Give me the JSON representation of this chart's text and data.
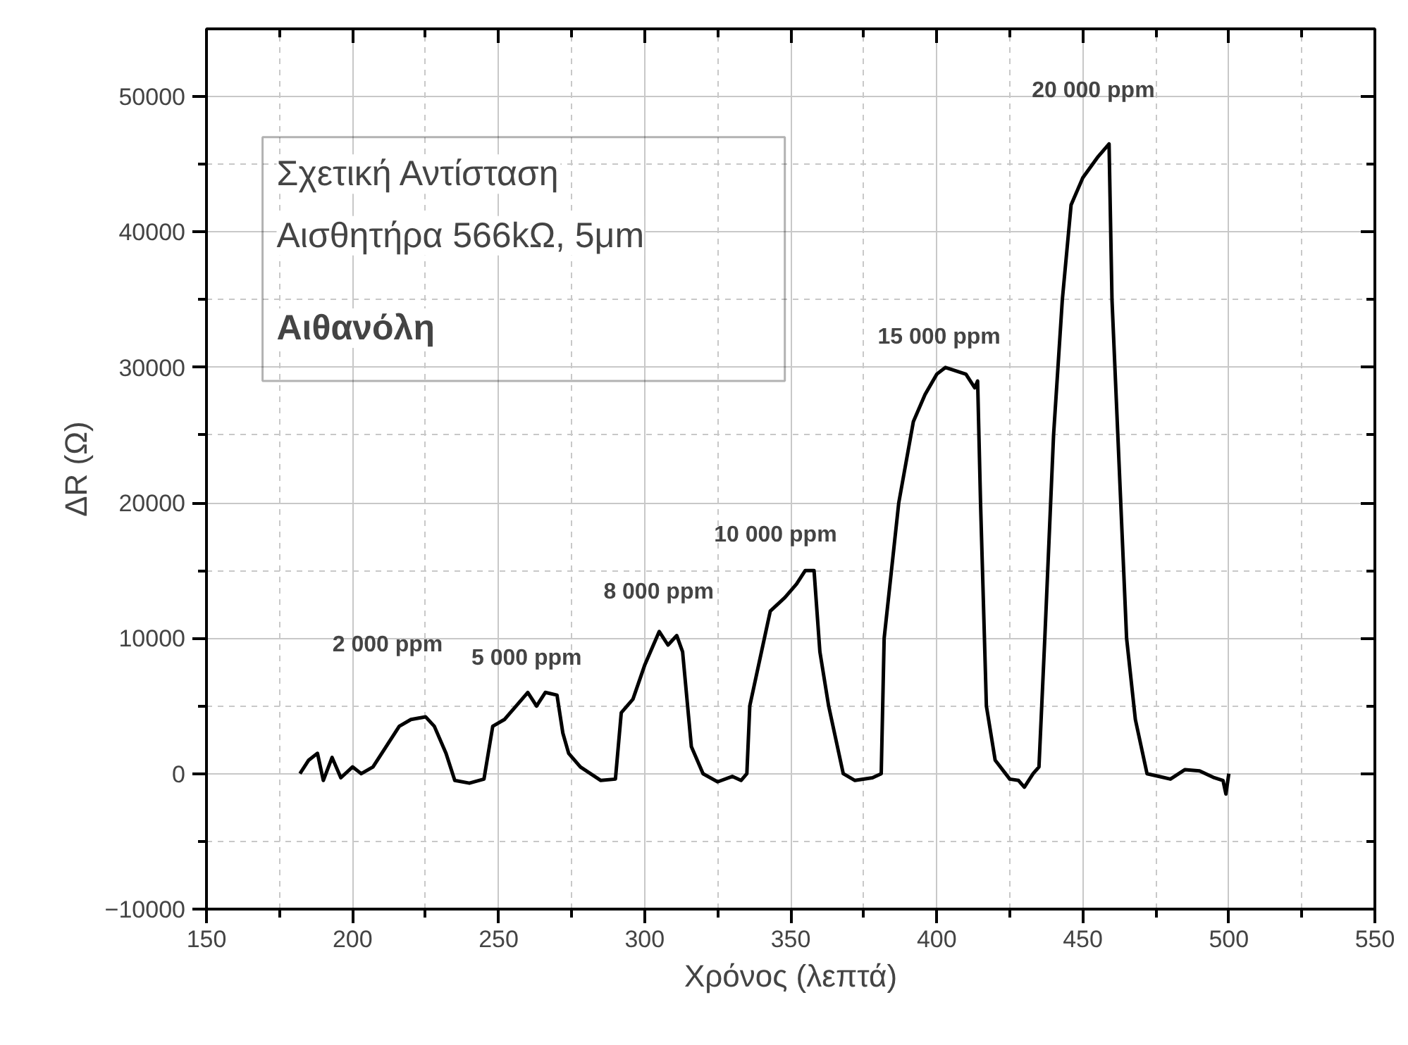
{
  "chart_data": {
    "type": "line",
    "xlabel": "Χρόνος (λεπτά)",
    "ylabel": "ΔR (Ω)",
    "xlim": [
      150,
      550
    ],
    "ylim": [
      -10000,
      55000
    ],
    "xticks": [
      150,
      200,
      250,
      300,
      350,
      400,
      450,
      500,
      550
    ],
    "yticks": [
      -10000,
      0,
      10000,
      20000,
      30000,
      40000,
      50000
    ],
    "grid": true,
    "marker": "none",
    "line_style": "solid",
    "series": [
      {
        "color": "#000000",
        "x": [
          182,
          185,
          188,
          190,
          193,
          196,
          200,
          203,
          207,
          210,
          213,
          216,
          220,
          225,
          228,
          232,
          235,
          240,
          245,
          248,
          252,
          256,
          260,
          263,
          266,
          270,
          272,
          274,
          278,
          285,
          290,
          292,
          296,
          300,
          305,
          308,
          311,
          313,
          316,
          320,
          325,
          330,
          333,
          335,
          336,
          340,
          343,
          348,
          352,
          355,
          358,
          360,
          363,
          368,
          372,
          378,
          381,
          382,
          387,
          392,
          396,
          400,
          403,
          410,
          413,
          414,
          415,
          417,
          420,
          425,
          428,
          430,
          433,
          435,
          437,
          440,
          443,
          446,
          450,
          455,
          459,
          460,
          462,
          465,
          468,
          472,
          476,
          480,
          485,
          490,
          495,
          498,
          499,
          500
        ],
        "values": [
          0,
          1000,
          1500,
          -500,
          1200,
          -300,
          500,
          0,
          500,
          1500,
          2500,
          3500,
          4000,
          4200,
          3500,
          1500,
          -500,
          -700,
          -400,
          3500,
          4000,
          5000,
          6000,
          5000,
          6000,
          5800,
          3000,
          1500,
          500,
          -500,
          -400,
          4500,
          5500,
          8000,
          10500,
          9500,
          10200,
          9000,
          2000,
          0,
          -600,
          -200,
          -500,
          0,
          5000,
          9000,
          12000,
          13000,
          14000,
          15000,
          15000,
          9000,
          5000,
          0,
          -500,
          -300,
          0,
          10000,
          20000,
          26000,
          28000,
          29500,
          30000,
          29500,
          28500,
          29000,
          20000,
          5000,
          1000,
          -400,
          -500,
          -1000,
          0,
          500,
          10000,
          25000,
          35000,
          42000,
          44000,
          45500,
          46500,
          35000,
          25000,
          10000,
          4000,
          0,
          -200,
          -400,
          300,
          200,
          -300,
          -500,
          -1500,
          0
        ]
      }
    ],
    "annotations": [
      "Σχετική Αντίσταση",
      "Αισθητήρα 566kΩ, 5μm",
      "Αιθανόλη",
      "2 000 ppm",
      "5 000 ppm",
      "8 000 ppm",
      "10 000 ppm",
      "15 000 ppm",
      "20 000 ppm"
    ]
  }
}
